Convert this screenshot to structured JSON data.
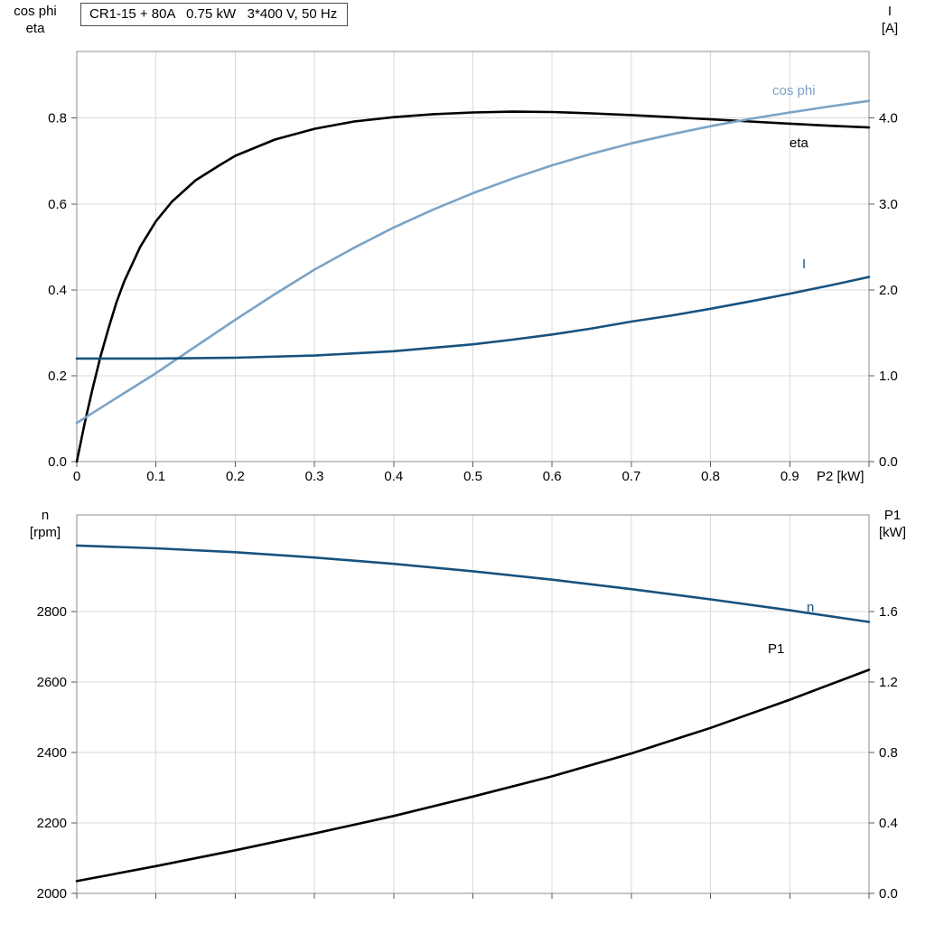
{
  "colors": {
    "black": "#000000",
    "dark_blue": "#17527f",
    "light_blue": "#7ba3c6",
    "grid": "#d9d9d9",
    "border": "#8c8c8c",
    "tick": "#595959"
  },
  "chart_data": [
    {
      "type": "line",
      "title": "CR1-15 + 80A   0.75 kW   3*400 V, 50 Hz",
      "x_label": "P2 [kW]",
      "xlim": [
        0,
        1.0
      ],
      "x_ticks": {
        "values": [
          0,
          0.1,
          0.2,
          0.3,
          0.4,
          0.5,
          0.6,
          0.7,
          0.8,
          0.9,
          1.0
        ],
        "labels": [
          "0",
          "0.1",
          "0.2",
          "0.3",
          "0.4",
          "0.5",
          "0.6",
          "0.7",
          "0.8",
          "0.9",
          ""
        ]
      },
      "left_axis": {
        "title_lines": [
          "cos phi",
          "eta"
        ],
        "lim": [
          0,
          0.955
        ],
        "ticks": [
          0,
          0.2,
          0.4,
          0.6,
          0.8
        ],
        "tick_labels": [
          "0.0",
          "0.2",
          "0.4",
          "0.6",
          "0.8"
        ]
      },
      "right_axis": {
        "title_lines": [
          "I",
          "[A]"
        ],
        "lim": [
          0,
          4.775
        ],
        "ticks": [
          0,
          1,
          2,
          3,
          4
        ],
        "tick_labels": [
          "0.0",
          "1.0",
          "2.0",
          "3.0",
          "4.0"
        ]
      },
      "grid": true,
      "legend_position": "inline-labels",
      "series": [
        {
          "name": "eta",
          "label": "eta",
          "axis": "left",
          "color": "#000000",
          "points": [
            [
              0,
              0
            ],
            [
              0.01,
              0.09
            ],
            [
              0.02,
              0.17
            ],
            [
              0.03,
              0.245
            ],
            [
              0.04,
              0.31
            ],
            [
              0.05,
              0.37
            ],
            [
              0.06,
              0.42
            ],
            [
              0.08,
              0.5
            ],
            [
              0.1,
              0.56
            ],
            [
              0.12,
              0.605
            ],
            [
              0.15,
              0.655
            ],
            [
              0.18,
              0.69
            ],
            [
              0.2,
              0.712
            ],
            [
              0.25,
              0.75
            ],
            [
              0.3,
              0.775
            ],
            [
              0.35,
              0.792
            ],
            [
              0.4,
              0.802
            ],
            [
              0.45,
              0.809
            ],
            [
              0.5,
              0.813
            ],
            [
              0.55,
              0.815
            ],
            [
              0.6,
              0.814
            ],
            [
              0.65,
              0.811
            ],
            [
              0.7,
              0.807
            ],
            [
              0.75,
              0.802
            ],
            [
              0.8,
              0.797
            ],
            [
              0.85,
              0.792
            ],
            [
              0.9,
              0.787
            ],
            [
              0.95,
              0.782
            ],
            [
              1,
              0.778
            ]
          ]
        },
        {
          "name": "cos_phi",
          "label": "cos phi",
          "axis": "left",
          "color": "#7ba3c6",
          "points": [
            [
              0,
              0.09
            ],
            [
              0.05,
              0.148
            ],
            [
              0.1,
              0.206
            ],
            [
              0.15,
              0.268
            ],
            [
              0.2,
              0.33
            ],
            [
              0.25,
              0.39
            ],
            [
              0.3,
              0.447
            ],
            [
              0.35,
              0.498
            ],
            [
              0.4,
              0.545
            ],
            [
              0.45,
              0.587
            ],
            [
              0.5,
              0.625
            ],
            [
              0.55,
              0.659
            ],
            [
              0.6,
              0.69
            ],
            [
              0.65,
              0.717
            ],
            [
              0.7,
              0.741
            ],
            [
              0.75,
              0.762
            ],
            [
              0.8,
              0.781
            ],
            [
              0.85,
              0.798
            ],
            [
              0.9,
              0.813
            ],
            [
              0.95,
              0.827
            ],
            [
              1,
              0.84
            ]
          ]
        },
        {
          "name": "current",
          "label": "I",
          "axis": "right",
          "color": "#17527f",
          "points": [
            [
              0,
              1.2
            ],
            [
              0.1,
              1.2
            ],
            [
              0.2,
              1.21
            ],
            [
              0.3,
              1.235
            ],
            [
              0.4,
              1.285
            ],
            [
              0.5,
              1.365
            ],
            [
              0.55,
              1.42
            ],
            [
              0.6,
              1.48
            ],
            [
              0.65,
              1.55
            ],
            [
              0.7,
              1.63
            ],
            [
              0.75,
              1.7
            ],
            [
              0.8,
              1.78
            ],
            [
              0.85,
              1.865
            ],
            [
              0.9,
              1.955
            ],
            [
              0.95,
              2.05
            ],
            [
              1,
              2.15
            ]
          ]
        }
      ]
    },
    {
      "type": "line",
      "title": "",
      "x_label": "",
      "xlim": [
        0,
        1.0
      ],
      "x_ticks": {
        "values": [
          0,
          0.1,
          0.2,
          0.3,
          0.4,
          0.5,
          0.6,
          0.7,
          0.8,
          0.9,
          1.0
        ],
        "labels": [
          "",
          "",
          "",
          "",
          "",
          "",
          "",
          "",
          "",
          "",
          ""
        ]
      },
      "left_axis": {
        "title_lines": [
          "n",
          "[rpm]"
        ],
        "lim": [
          2000,
          3075
        ],
        "ticks": [
          2000,
          2200,
          2400,
          2600,
          2800
        ],
        "tick_labels": [
          "2000",
          "2200",
          "2400",
          "2600",
          "2800"
        ]
      },
      "right_axis": {
        "title_lines": [
          "P1",
          "[kW]"
        ],
        "lim": [
          0,
          2.15
        ],
        "ticks": [
          0,
          0.4,
          0.8,
          1.2,
          1.6
        ],
        "tick_labels": [
          "0.0",
          "0.4",
          "0.8",
          "1.2",
          "1.6"
        ]
      },
      "grid": true,
      "legend_position": "inline-labels",
      "series": [
        {
          "name": "speed",
          "label": "n",
          "axis": "left",
          "color": "#17527f",
          "points": [
            [
              0,
              2988
            ],
            [
              0.1,
              2980
            ],
            [
              0.2,
              2969
            ],
            [
              0.3,
              2954
            ],
            [
              0.4,
              2936
            ],
            [
              0.5,
              2915
            ],
            [
              0.6,
              2891
            ],
            [
              0.7,
              2864
            ],
            [
              0.8,
              2835
            ],
            [
              0.9,
              2804
            ],
            [
              1,
              2771
            ]
          ]
        },
        {
          "name": "p1",
          "label": "P1",
          "axis": "right",
          "color": "#000000",
          "points": [
            [
              0,
              0.07
            ],
            [
              0.1,
              0.155
            ],
            [
              0.2,
              0.245
            ],
            [
              0.3,
              0.34
            ],
            [
              0.4,
              0.44
            ],
            [
              0.5,
              0.55
            ],
            [
              0.6,
              0.665
            ],
            [
              0.7,
              0.795
            ],
            [
              0.8,
              0.94
            ],
            [
              0.9,
              1.1
            ],
            [
              1,
              1.27
            ]
          ]
        }
      ]
    }
  ]
}
